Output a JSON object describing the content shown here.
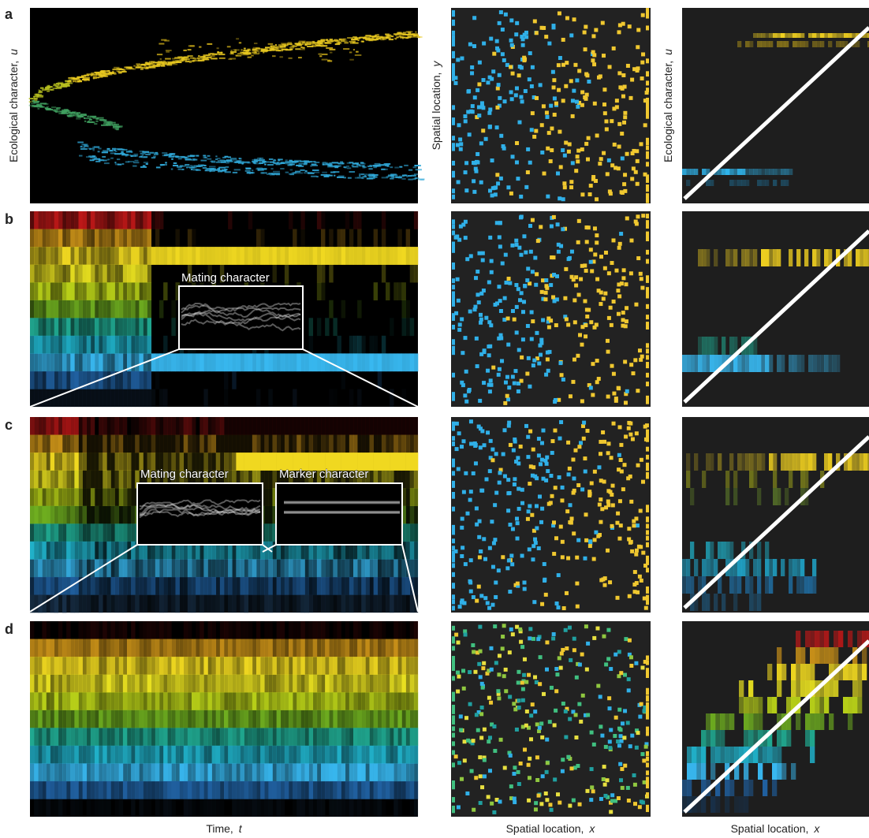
{
  "panel_labels": [
    "a",
    "b",
    "c",
    "d"
  ],
  "axis_labels": {
    "ecological_left": {
      "text": "Ecological character,",
      "var": "u"
    },
    "spatial_y": {
      "text": "Spatial location,",
      "var": "y"
    },
    "ecological_right": {
      "text": "Ecological character,",
      "var": "u"
    },
    "time": {
      "text": "Time,",
      "var": "t"
    },
    "spatial_x_middle": {
      "text": "Spatial location,",
      "var": "x"
    },
    "spatial_x_right": {
      "text": "Spatial location,",
      "var": "x"
    }
  },
  "insets": {
    "b": [
      "Mating character"
    ],
    "c": [
      "Mating character",
      "Marker character"
    ]
  }
}
